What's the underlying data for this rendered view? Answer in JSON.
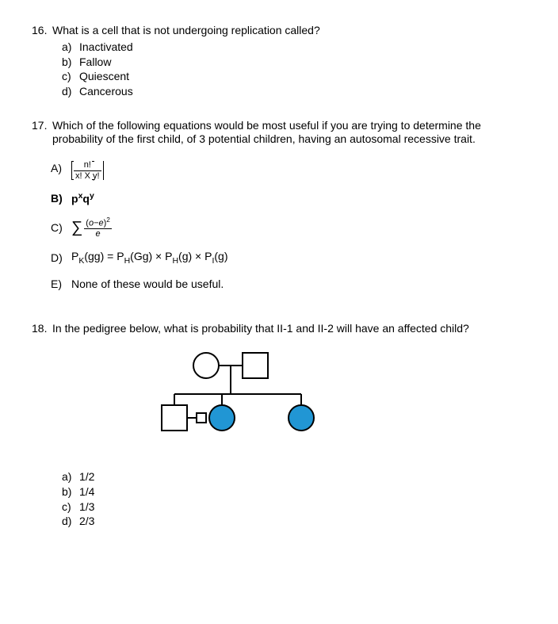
{
  "q16": {
    "number": "16.",
    "stem": "What is a cell that is not undergoing replication called?",
    "opts": [
      {
        "l": "a)",
        "t": "Inactivated"
      },
      {
        "l": "b)",
        "t": "Fallow"
      },
      {
        "l": "c)",
        "t": "Quiescent"
      },
      {
        "l": "d)",
        "t": "Cancerous"
      }
    ]
  },
  "q17": {
    "number": "17.",
    "stem": "Which of the following equations would be most useful if you are trying to determine the probability of the first child, of 3 potential children, having an autosomal recessive trait.",
    "A": {
      "label": "A)",
      "num": "n!",
      "den": "x! X y!"
    },
    "B": {
      "label": "B)",
      "expr_html": "p<sup>x</sup>q<sup>y</sup>"
    },
    "C": {
      "label": "C)",
      "num_html": "(<span class='italic'>o</span>−<span class='italic'>e</span>)<sup>2</sup>",
      "den": "e"
    },
    "D": {
      "label": "D)",
      "expr_html": "P<sub>K</sub>(gg) = P<sub>H</sub>(Gg) × P<sub>H</sub>(g) × P<sub>I</sub>(g)"
    },
    "E": {
      "label": "E)",
      "text": "None of these would be useful."
    }
  },
  "q18": {
    "number": "18.",
    "stem": "In the pedigree below, what is probability that II-1 and II-2 will have an affected child?",
    "opts": [
      {
        "l": "a)",
        "t": "1/2"
      },
      {
        "l": "b)",
        "t": "1/4"
      },
      {
        "l": "c)",
        "t": "1/3"
      },
      {
        "l": "d)",
        "t": "2/3"
      }
    ],
    "pedigree": {
      "affected_color": "#2196d4",
      "stroke": "#000000",
      "bg": "#ffffff"
    }
  }
}
